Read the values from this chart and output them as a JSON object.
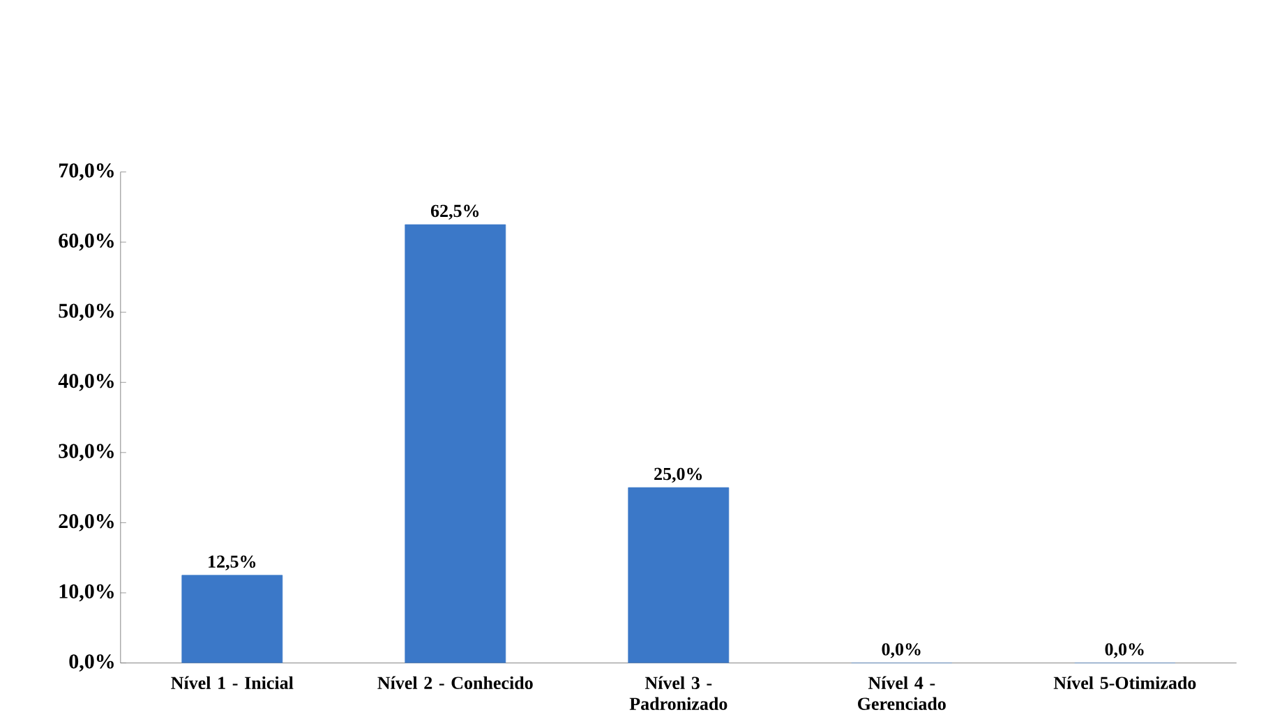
{
  "chart_data": {
    "type": "bar",
    "categories": [
      "Nível 1 - Inicial",
      "Nível 2 - Conhecido",
      "Nível 3 - Padronizado",
      "Nível 4 - Gerenciado",
      "Nível 5-Otimizado"
    ],
    "values": [
      12.5,
      62.5,
      25.0,
      0.0,
      0.0
    ],
    "value_labels": [
      "12,5%",
      "62,5%",
      "25,0%",
      "0,0%",
      "0,0%"
    ],
    "color": "#3b78c8",
    "ylim": [
      0,
      70
    ],
    "yticks": [
      {
        "value": 0,
        "label": "0,0%"
      },
      {
        "value": 10,
        "label": "10,0%"
      },
      {
        "value": 20,
        "label": "20,0%"
      },
      {
        "value": 30,
        "label": "30,0%"
      },
      {
        "value": 40,
        "label": "40,0%"
      },
      {
        "value": 50,
        "label": "50,0%"
      },
      {
        "value": 60,
        "label": "60,0%"
      },
      {
        "value": 70,
        "label": "70,0%"
      }
    ],
    "grid": false
  }
}
